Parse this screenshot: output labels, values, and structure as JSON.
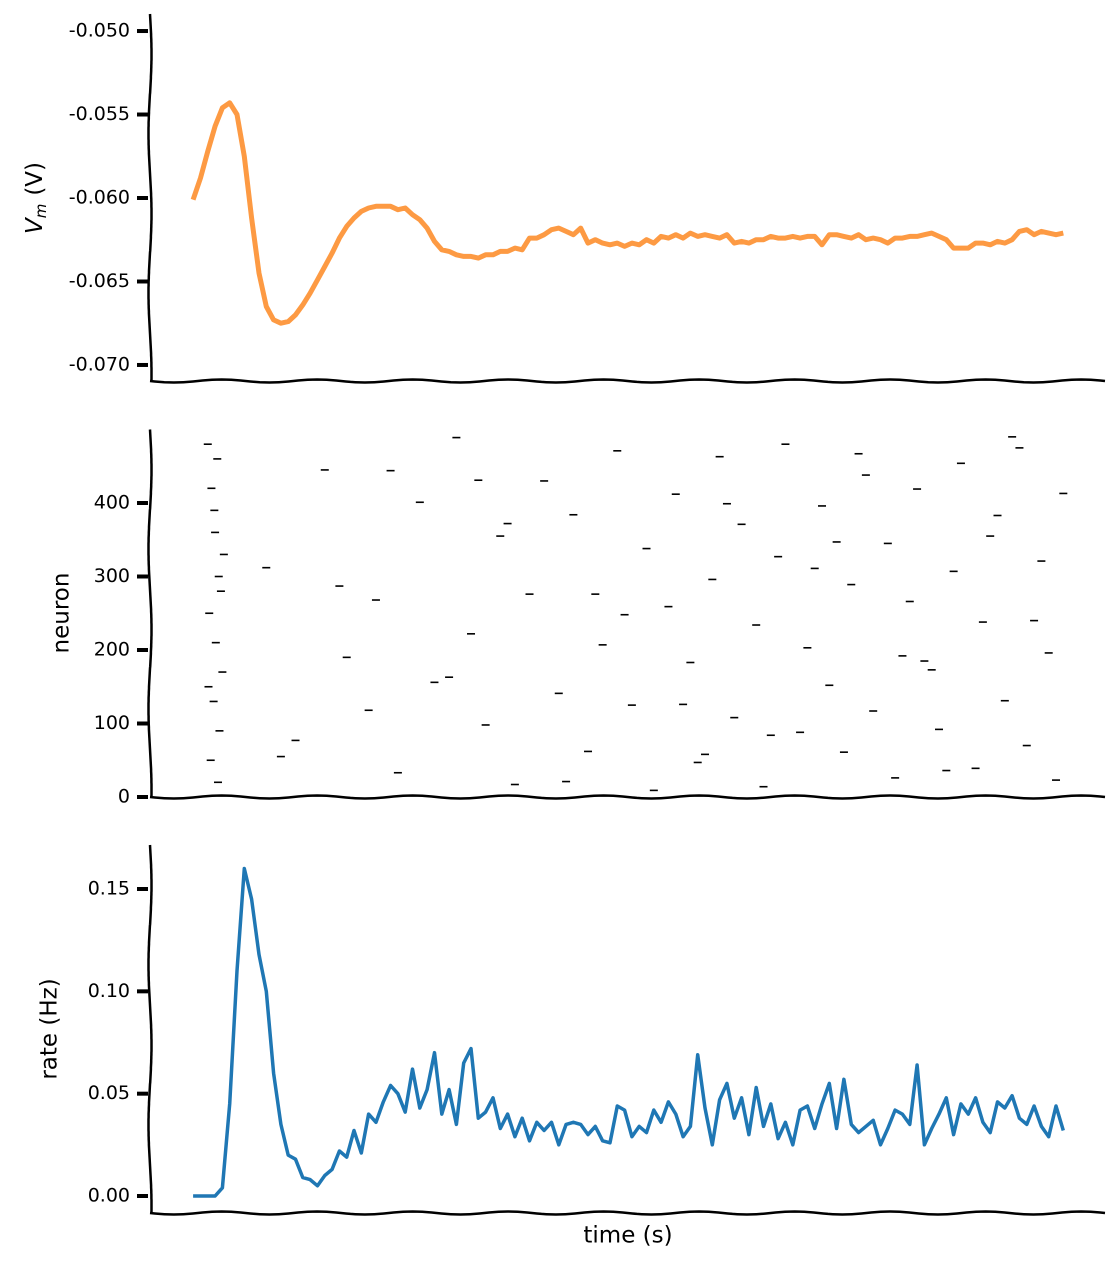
{
  "chart_data": [
    {
      "type": "line",
      "ylabel": "V",
      "ylabel_subscript": "m",
      "ylabel_unit": "(V)",
      "color": "#fd9a43",
      "xlim": [
        -5.9,
        124.7
      ],
      "ylim": [
        -0.07096,
        -0.04898
      ],
      "yticks": [
        {
          "value": -0.05,
          "label": "-0.050"
        },
        {
          "value": -0.055,
          "label": "-0.055"
        },
        {
          "value": -0.06,
          "label": "-0.060"
        },
        {
          "value": -0.065,
          "label": "-0.065"
        },
        {
          "value": -0.07,
          "label": "-0.070"
        }
      ],
      "values": [
        -0.0601,
        -0.0588,
        -0.0572,
        -0.0557,
        -0.0546,
        -0.0543,
        -0.055,
        -0.0575,
        -0.0612,
        -0.0645,
        -0.0665,
        -0.0673,
        -0.0675,
        -0.0674,
        -0.067,
        -0.0664,
        -0.0657,
        -0.0649,
        -0.0641,
        -0.0633,
        -0.0624,
        -0.0617,
        -0.0612,
        -0.0608,
        -0.0606,
        -0.0605,
        -0.0605,
        -0.0605,
        -0.0607,
        -0.0606,
        -0.061,
        -0.0613,
        -0.0618,
        -0.0626,
        -0.0631,
        -0.0632,
        -0.0634,
        -0.0635,
        -0.0635,
        -0.0636,
        -0.0634,
        -0.0634,
        -0.0632,
        -0.0632,
        -0.063,
        -0.0631,
        -0.0624,
        -0.0624,
        -0.0622,
        -0.0619,
        -0.0618,
        -0.062,
        -0.0622,
        -0.0618,
        -0.0627,
        -0.0625,
        -0.0627,
        -0.0628,
        -0.0627,
        -0.0629,
        -0.0627,
        -0.0628,
        -0.0625,
        -0.0627,
        -0.0623,
        -0.0624,
        -0.0622,
        -0.0624,
        -0.0621,
        -0.0623,
        -0.0622,
        -0.0623,
        -0.0624,
        -0.0622,
        -0.0627,
        -0.0626,
        -0.0627,
        -0.0625,
        -0.0625,
        -0.0623,
        -0.0624,
        -0.0624,
        -0.0623,
        -0.0624,
        -0.0623,
        -0.0623,
        -0.0628,
        -0.0622,
        -0.0622,
        -0.0623,
        -0.0624,
        -0.0622,
        -0.0625,
        -0.0624,
        -0.0625,
        -0.0627,
        -0.0624,
        -0.0624,
        -0.0623,
        -0.0623,
        -0.0622,
        -0.0621,
        -0.0623,
        -0.0625,
        -0.063,
        -0.063,
        -0.063,
        -0.0627,
        -0.0627,
        -0.0628,
        -0.0626,
        -0.0627,
        -0.0625,
        -0.062,
        -0.0619,
        -0.0622,
        -0.062,
        -0.0621,
        -0.0622,
        -0.0621
      ]
    },
    {
      "type": "scatter",
      "ylabel": "neuron",
      "color": "#000000",
      "xlim": [
        -5.9,
        124.7
      ],
      "ylim": [
        0,
        500
      ],
      "yticks": [
        0,
        100,
        200,
        300,
        400
      ],
      "x": [
        2,
        2.5,
        3,
        3.5,
        2.2,
        3.1,
        4,
        2.8,
        3.6,
        2.4,
        3.3,
        2.9,
        4.2,
        3.8,
        2.1,
        3.4,
        10,
        14,
        18,
        21,
        25,
        28,
        31,
        33,
        36,
        38,
        40,
        42,
        44,
        46,
        48,
        50,
        52,
        54,
        56,
        58,
        60,
        62,
        63,
        65,
        66,
        68,
        69,
        71,
        72,
        74,
        75,
        77,
        78,
        80,
        81,
        83,
        84,
        86,
        87,
        89,
        90,
        92,
        93,
        95,
        96,
        98,
        99,
        101,
        102,
        104,
        105,
        107,
        108,
        110,
        111,
        113,
        114,
        116,
        117,
        119,
        12,
        20,
        27,
        35,
        43,
        51,
        59,
        67,
        73,
        79,
        85,
        91,
        97,
        103,
        109,
        115,
        24,
        39,
        55,
        70,
        88,
        100,
        112,
        118
      ],
      "y": [
        480,
        420,
        360,
        300,
        250,
        210,
        170,
        130,
        90,
        50,
        460,
        390,
        330,
        280,
        150,
        20,
        312,
        77,
        445,
        190,
        268,
        33,
        401,
        156,
        489,
        222,
        98,
        355,
        17,
        276,
        430,
        141,
        384,
        62,
        207,
        471,
        125,
        338,
        9,
        259,
        412,
        183,
        47,
        296,
        463,
        108,
        371,
        234,
        14,
        327,
        480,
        88,
        203,
        396,
        152,
        61,
        289,
        438,
        117,
        345,
        26,
        266,
        419,
        173,
        92,
        307,
        454,
        39,
        238,
        383,
        131,
        475,
        70,
        321,
        196,
        413,
        55,
        287,
        444,
        163,
        372,
        21,
        248,
        126,
        399,
        84,
        311,
        467,
        192,
        36,
        355,
        240,
        118,
        431,
        276,
        58,
        347,
        185,
        490,
        23
      ]
    },
    {
      "type": "line",
      "ylabel": "rate (Hz)",
      "xlabel": "time (s)",
      "color": "#1f77b4",
      "xlim": [
        -5.9,
        124.7
      ],
      "ylim": [
        -0.0083,
        0.1715
      ],
      "yticks": [
        {
          "value": 0,
          "label": "0.00"
        },
        {
          "value": 0.05,
          "label": "0.05"
        },
        {
          "value": 0.1,
          "label": "0.10"
        },
        {
          "value": 0.15,
          "label": "0.15"
        }
      ],
      "values": [
        0,
        0,
        0,
        0,
        0.004,
        0.045,
        0.11,
        0.16,
        0.145,
        0.118,
        0.1,
        0.06,
        0.035,
        0.02,
        0.018,
        0.009,
        0.008,
        0.005,
        0.01,
        0.013,
        0.022,
        0.019,
        0.032,
        0.021,
        0.04,
        0.036,
        0.046,
        0.054,
        0.05,
        0.041,
        0.062,
        0.043,
        0.052,
        0.07,
        0.04,
        0.052,
        0.035,
        0.065,
        0.072,
        0.038,
        0.041,
        0.048,
        0.033,
        0.04,
        0.029,
        0.038,
        0.027,
        0.036,
        0.032,
        0.036,
        0.025,
        0.035,
        0.036,
        0.035,
        0.03,
        0.034,
        0.027,
        0.026,
        0.044,
        0.042,
        0.029,
        0.034,
        0.031,
        0.042,
        0.036,
        0.046,
        0.04,
        0.029,
        0.034,
        0.069,
        0.043,
        0.025,
        0.047,
        0.055,
        0.038,
        0.048,
        0.03,
        0.053,
        0.034,
        0.045,
        0.028,
        0.036,
        0.025,
        0.042,
        0.044,
        0.033,
        0.045,
        0.055,
        0.033,
        0.057,
        0.035,
        0.031,
        0.034,
        0.037,
        0.025,
        0.033,
        0.042,
        0.04,
        0.035,
        0.064,
        0.025,
        0.033,
        0.04,
        0.048,
        0.03,
        0.045,
        0.04,
        0.048,
        0.036,
        0.031,
        0.046,
        0.043,
        0.049,
        0.038,
        0.035,
        0.044,
        0.034,
        0.029,
        0.044,
        0.032
      ]
    }
  ]
}
